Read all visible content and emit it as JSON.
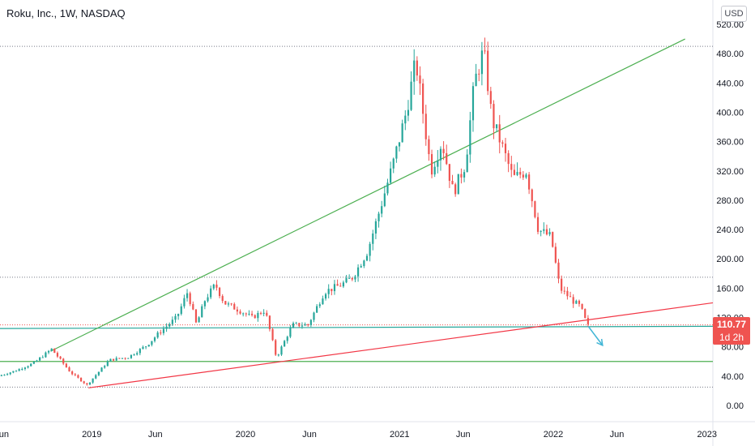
{
  "header": {
    "title": "Roku, Inc., 1W, NASDAQ",
    "currency": "USD"
  },
  "price_badge": {
    "price": "110.77",
    "countdown": "1d 2h",
    "color": "#ef5350"
  },
  "colors": {
    "up": "#26a69a",
    "down": "#ef5350",
    "trend_green": "#4caf50",
    "trend_red": "#f23645",
    "arrow": "#42b6d6",
    "grid_text": "#131722"
  },
  "chart_data": {
    "type": "candlestick",
    "title": "Roku, Inc., 1W, NASDAQ",
    "y_axis": {
      "ticks": [
        0,
        40,
        80,
        120,
        160,
        200,
        240,
        280,
        320,
        360,
        400,
        440,
        480,
        520
      ],
      "tick_labels": [
        "0.00",
        "40.00",
        "80.00",
        "120.00",
        "160.00",
        "200.00",
        "240.00",
        "280.00",
        "320.00",
        "360.00",
        "400.00",
        "440.00",
        "480.00",
        "520.00"
      ],
      "ylim": [
        -15,
        525
      ],
      "position": "right"
    },
    "x_axis": {
      "range": [
        "2018-05-28",
        "2023-01-15"
      ],
      "ticks": [
        {
          "date": "2018-06-01",
          "label": "Jun"
        },
        {
          "date": "2019-01-01",
          "label": "2019"
        },
        {
          "date": "2019-06-01",
          "label": "Jun"
        },
        {
          "date": "2020-01-01",
          "label": "2020"
        },
        {
          "date": "2020-06-01",
          "label": "Jun"
        },
        {
          "date": "2021-01-01",
          "label": "2021"
        },
        {
          "date": "2021-06-01",
          "label": "Jun"
        },
        {
          "date": "2022-01-01",
          "label": "2022"
        },
        {
          "date": "2022-06-01",
          "label": "Jun"
        },
        {
          "date": "2023-01-01",
          "label": "2023"
        }
      ]
    },
    "anchors": [
      [
        "2018-05-28",
        40
      ],
      [
        "2018-07-10",
        48
      ],
      [
        "2018-08-20",
        58
      ],
      [
        "2018-10-01",
        77
      ],
      [
        "2018-11-15",
        45
      ],
      [
        "2018-12-24",
        28
      ],
      [
        "2019-02-15",
        62
      ],
      [
        "2019-04-01",
        66
      ],
      [
        "2019-05-15",
        82
      ],
      [
        "2019-06-15",
        100
      ],
      [
        "2019-07-25",
        120
      ],
      [
        "2019-08-20",
        155
      ],
      [
        "2019-09-10",
        110
      ],
      [
        "2019-10-01",
        145
      ],
      [
        "2019-10-25",
        165
      ],
      [
        "2019-11-15",
        140
      ],
      [
        "2019-12-20",
        130
      ],
      [
        "2020-01-20",
        120
      ],
      [
        "2020-02-20",
        130
      ],
      [
        "2020-03-18",
        65
      ],
      [
        "2020-04-25",
        110
      ],
      [
        "2020-06-01",
        110
      ],
      [
        "2020-07-10",
        155
      ],
      [
        "2020-08-20",
        165
      ],
      [
        "2020-09-15",
        175
      ],
      [
        "2020-10-20",
        210
      ],
      [
        "2020-11-20",
        270
      ],
      [
        "2020-12-20",
        330
      ],
      [
        "2021-01-20",
        400
      ],
      [
        "2021-02-12",
        470
      ],
      [
        "2021-03-01",
        400
      ],
      [
        "2021-03-20",
        320
      ],
      [
        "2021-04-15",
        360
      ],
      [
        "2021-05-12",
        290
      ],
      [
        "2021-06-10",
        330
      ],
      [
        "2021-07-01",
        440
      ],
      [
        "2021-07-23",
        485
      ],
      [
        "2021-08-12",
        390
      ],
      [
        "2021-09-01",
        360
      ],
      [
        "2021-10-01",
        310
      ],
      [
        "2021-11-01",
        320
      ],
      [
        "2021-11-30",
        240
      ],
      [
        "2021-12-30",
        230
      ],
      [
        "2022-01-20",
        160
      ],
      [
        "2022-02-25",
        140
      ],
      [
        "2022-03-10",
        135
      ],
      [
        "2022-03-25",
        110.77
      ]
    ],
    "annotations": {
      "horizontal_dotted": [
        490,
        175,
        110,
        25
      ],
      "horizontal_lines": [
        {
          "y": 105,
          "color": "teal",
          "from": "2018-05-28",
          "y_end": 108
        },
        {
          "y": 60,
          "color": "green",
          "from": "2018-05-28"
        }
      ],
      "trend_lines": [
        {
          "color": "green",
          "from": [
            "2018-09-25",
            74
          ],
          "to": [
            "2022-11-10",
            500
          ]
        },
        {
          "color": "red",
          "from": [
            "2018-12-24",
            24
          ],
          "to": [
            "2023-01-15",
            140
          ]
        }
      ],
      "forecast_arrow": {
        "from": [
          "2022-03-25",
          108
        ],
        "to": [
          "2022-04-28",
          82
        ]
      }
    },
    "last_price": 110.77
  }
}
